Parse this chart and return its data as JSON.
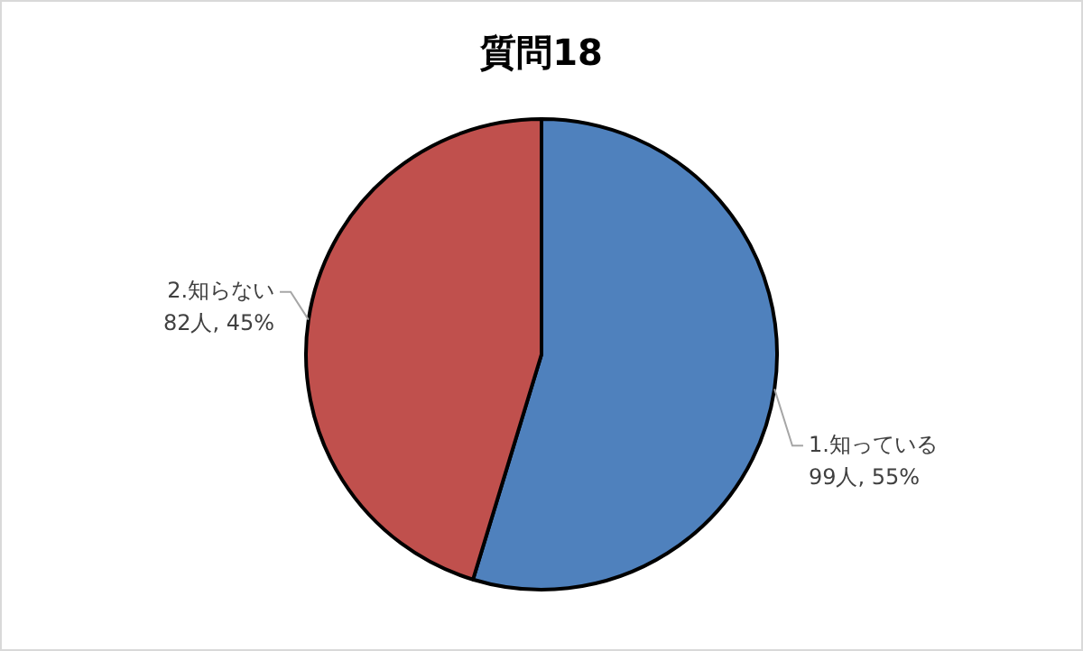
{
  "chart_data": {
    "type": "pie",
    "title": "質問18",
    "categories": [
      "1.知っている",
      "2.知らない"
    ],
    "values": [
      99,
      82
    ],
    "colors": [
      "#4f81bd",
      "#c0504d"
    ],
    "value_labels": [
      "99人, 55%",
      "82人, 45%"
    ],
    "legend": false
  }
}
